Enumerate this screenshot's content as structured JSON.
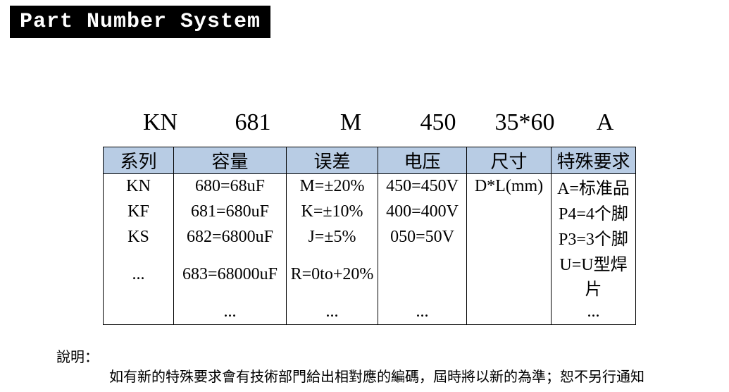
{
  "title": "Part Number System",
  "partnum": {
    "series": "KN",
    "capacitance": "681",
    "tolerance": "M",
    "voltage": "450",
    "size": "35*60",
    "special": "A"
  },
  "table": {
    "headers": [
      "系列",
      "容量",
      "误差",
      "电压",
      "尺寸",
      "特殊要求"
    ],
    "rows": [
      [
        "KN",
        "680=68uF",
        "M=±20%",
        "450=450V",
        "D*L(mm)",
        "A=标准品"
      ],
      [
        "KF",
        "681=680uF",
        "K=±10%",
        "400=400V",
        "",
        "P4=4个脚"
      ],
      [
        "KS",
        "682=6800uF",
        "J=±5%",
        "050=50V",
        "",
        "P3=3个脚"
      ],
      [
        "...",
        "683=68000uF",
        "R=0to+20%",
        "",
        "",
        "U=U型焊片"
      ],
      [
        "",
        "...",
        "...",
        "...",
        "",
        "..."
      ]
    ]
  },
  "note": {
    "label": "說明：",
    "body": "如有新的特殊要求會有技術部門給出相對應的編碼，屆時將以新的為準；恕不另行通知"
  },
  "colors": {
    "header_bg": "#b8cce4",
    "title_bg": "#000000",
    "title_fg": "#ffffff",
    "page_bg": "#ffffff",
    "border": "#000000"
  }
}
